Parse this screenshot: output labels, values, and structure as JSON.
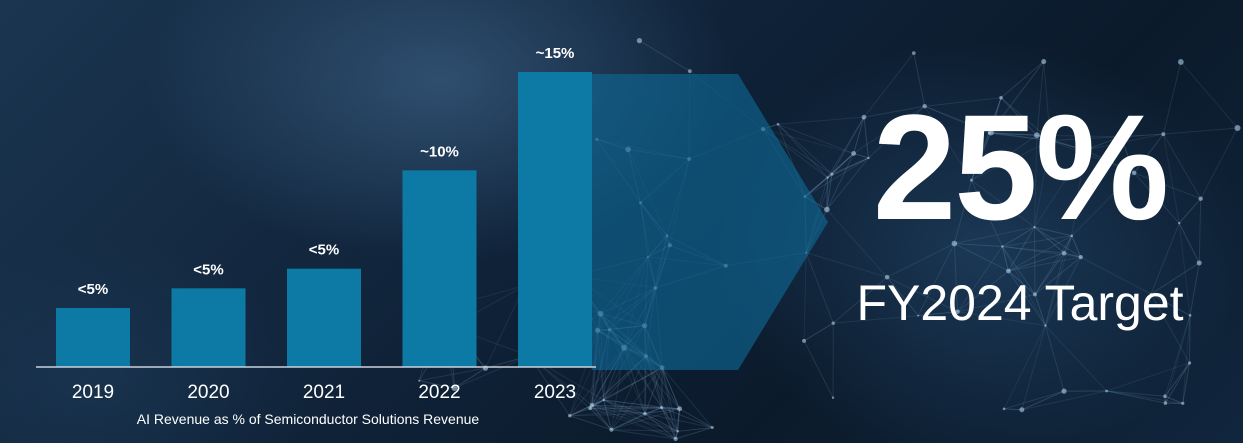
{
  "chart_data": {
    "type": "bar",
    "categories": [
      "2019",
      "2020",
      "2021",
      "2022",
      "2023"
    ],
    "values": [
      3,
      4,
      5,
      10,
      15
    ],
    "data_labels": [
      "<5%",
      "<5%",
      "<5%",
      "~10%",
      "~15%"
    ],
    "xlabel": "AI Revenue as % of Semiconductor Solutions Revenue",
    "ylabel": "",
    "ylim": [
      0,
      15
    ],
    "grid": false,
    "bar_color": "#0d7aa6"
  },
  "target": {
    "value": "25%",
    "label": "FY2024 Target"
  },
  "colors": {
    "background": "#0c1b2c",
    "bar": "#0d7aa6",
    "text": "#ffffff"
  }
}
